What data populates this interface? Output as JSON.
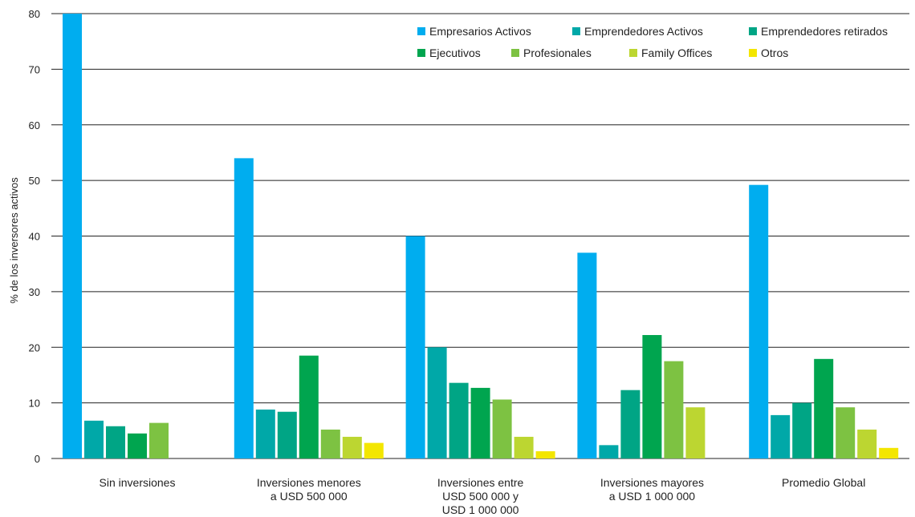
{
  "chart_data": {
    "type": "bar",
    "title": "",
    "xlabel": "",
    "ylabel": "% de los inversores activos",
    "ylim": [
      0,
      80
    ],
    "yticks": [
      0,
      10,
      20,
      30,
      40,
      50,
      60,
      70,
      80
    ],
    "grid": true,
    "legend_position": "top-right",
    "categories": [
      [
        "Sin inversiones"
      ],
      [
        "Inversiones menores",
        "a USD 500 000"
      ],
      [
        "Inversiones entre",
        "USD 500 000 y",
        "USD 1 000 000"
      ],
      [
        "Inversiones mayores",
        "a USD 1 000 000"
      ],
      [
        "Promedio Global"
      ]
    ],
    "series": [
      {
        "name": "Empresarios Activos",
        "color": "#00adef",
        "values": [
          80,
          54,
          40,
          37,
          49.2
        ]
      },
      {
        "name": "Emprendedores Activos",
        "color": "#00a8a8",
        "values": [
          6.8,
          8.8,
          20,
          2.4,
          7.8
        ]
      },
      {
        "name": "Emprendedores retirados",
        "color": "#00a585",
        "values": [
          5.8,
          8.4,
          13.6,
          12.3,
          10
        ]
      },
      {
        "name": "Ejecutivos",
        "color": "#00a54f",
        "values": [
          4.5,
          18.5,
          12.7,
          22.2,
          17.9
        ]
      },
      {
        "name": "Profesionales",
        "color": "#7dc242",
        "values": [
          6.4,
          5.2,
          10.6,
          17.5,
          9.2
        ]
      },
      {
        "name": "Family Offices",
        "color": "#bcd631",
        "values": [
          0,
          3.9,
          3.9,
          9.2,
          5.2
        ]
      },
      {
        "name": "Otros",
        "color": "#f3e600",
        "values": [
          0,
          2.8,
          1.3,
          0,
          1.9
        ]
      }
    ]
  }
}
